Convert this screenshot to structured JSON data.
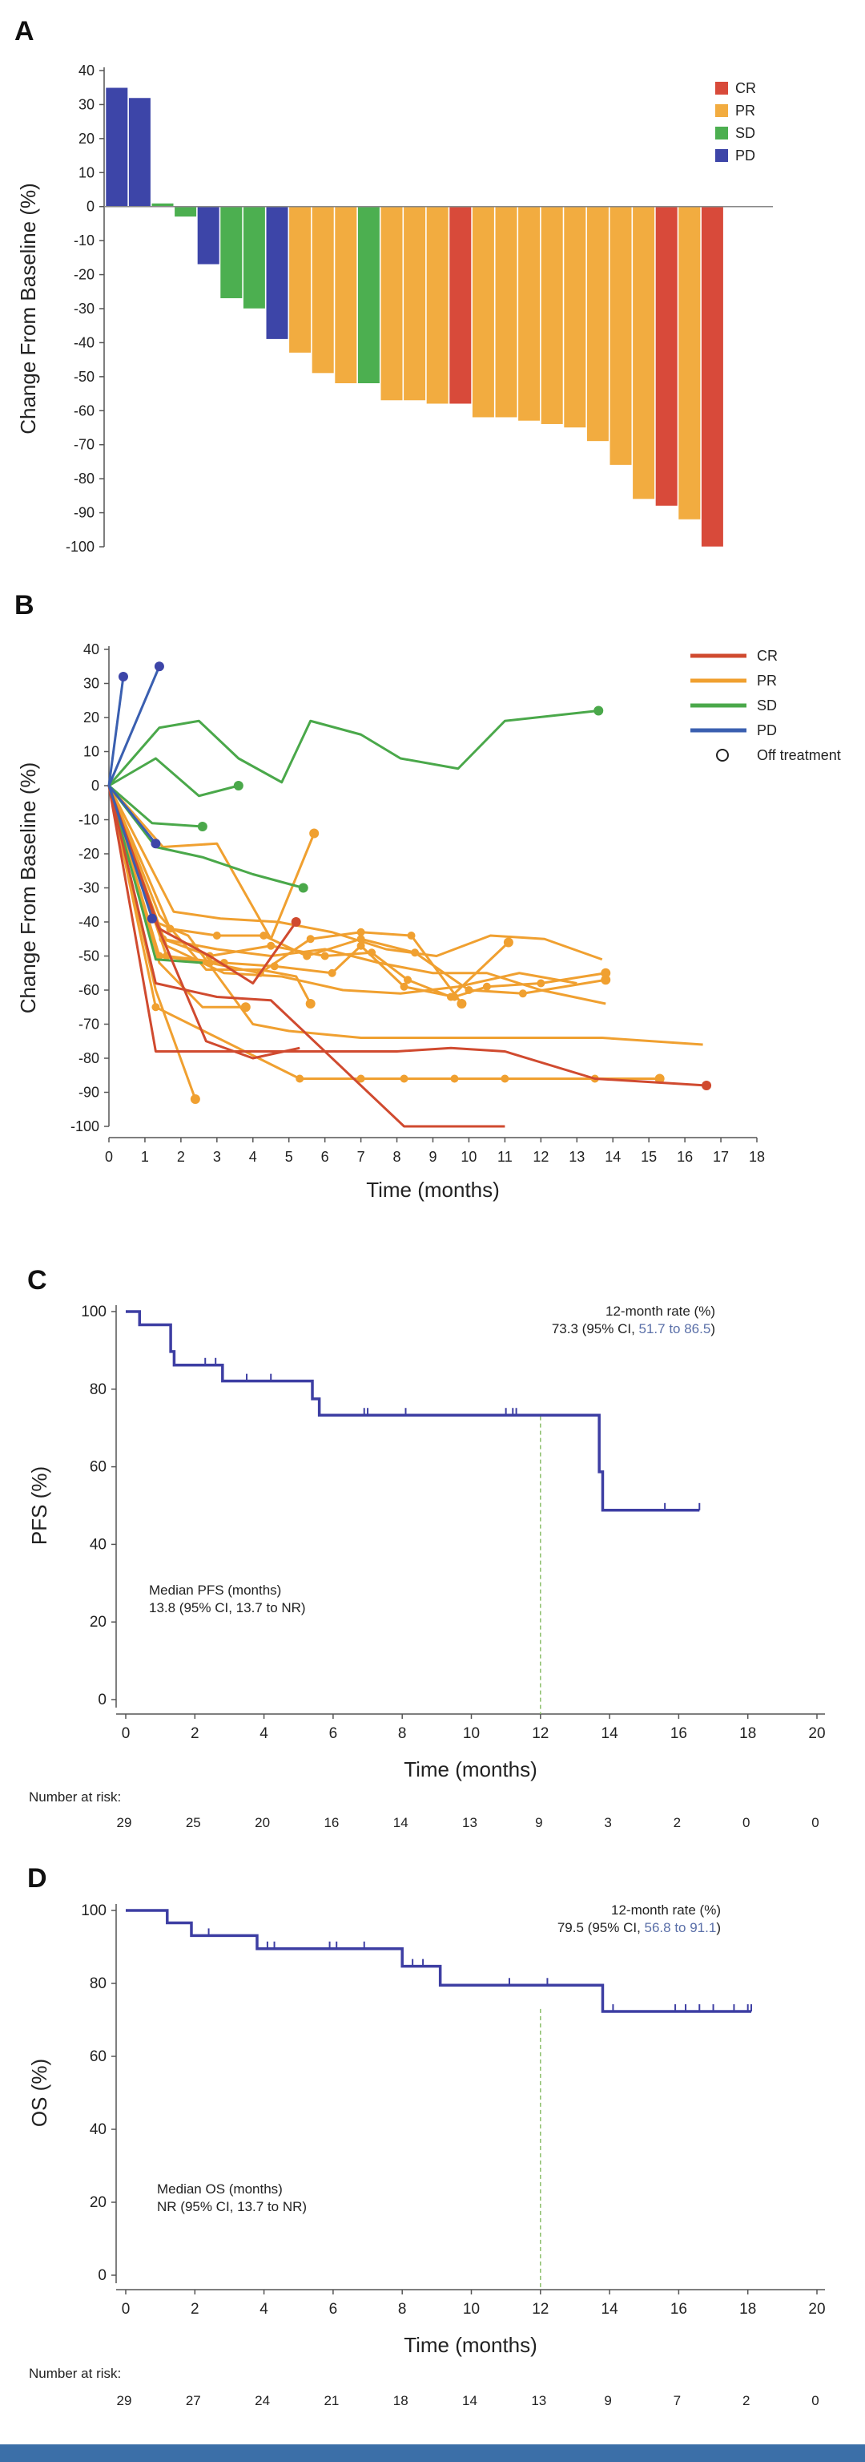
{
  "colors": {
    "CR": "#d84a3a",
    "PR": "#f2ac40",
    "SD": "#4caf50",
    "PD": "#3d45a8",
    "km": "#3d3ea3",
    "ref": "#8cbf6a",
    "lineCR": "#d04a2f",
    "linePR": "#f0a030",
    "lineSD": "#4aa84a",
    "linePD": "#3a5fb0"
  },
  "chart_data": [
    {
      "panel": "A",
      "type": "bar",
      "ylabel": "Change From Baseline (%)",
      "ylim": [
        -100,
        40
      ],
      "yticks": [
        40,
        30,
        20,
        10,
        0,
        -10,
        -20,
        -30,
        -40,
        -50,
        -60,
        -70,
        -80,
        -90,
        -100
      ],
      "legend": [
        "CR",
        "PR",
        "SD",
        "PD"
      ],
      "values": [
        35,
        32,
        1,
        -3,
        -17,
        -27,
        -30,
        -39,
        -43,
        -49,
        -52,
        -52,
        -57,
        -57,
        -58,
        -58,
        -62,
        -62,
        -63,
        -64,
        -65,
        -69,
        -76,
        -86,
        -88,
        -92,
        -100
      ],
      "response": [
        "PD",
        "PD",
        "SD",
        "SD",
        "PD",
        "SD",
        "SD",
        "PD",
        "PR",
        "PR",
        "PR",
        "SD",
        "PR",
        "PR",
        "PR",
        "CR",
        "PR",
        "PR",
        "PR",
        "PR",
        "PR",
        "PR",
        "PR",
        "PR",
        "CR",
        "PR",
        "CR"
      ]
    },
    {
      "panel": "B",
      "type": "line",
      "ylabel": "Change From Baseline (%)",
      "xlabel": "Time (months)",
      "xlim": [
        0,
        18
      ],
      "ylim": [
        -100,
        40
      ],
      "xticks": [
        0,
        1,
        2,
        3,
        4,
        5,
        6,
        7,
        8,
        9,
        10,
        11,
        12,
        13,
        14,
        15,
        16,
        17,
        18
      ],
      "yticks": [
        40,
        30,
        20,
        10,
        0,
        -10,
        -20,
        -30,
        -40,
        -50,
        -60,
        -70,
        -80,
        -90,
        -100
      ],
      "legend": [
        "CR",
        "PR",
        "SD",
        "PD",
        "Off treatment"
      ],
      "series": [
        {
          "response": "CR",
          "x": [
            0,
            1.3,
            4.2,
            6,
            8,
            9.5,
            11,
            13.5,
            16.6
          ],
          "y": [
            0,
            -78,
            -78,
            -78,
            -78,
            -77,
            -78,
            -86,
            -88
          ],
          "end_marker": true
        },
        {
          "response": "CR",
          "x": [
            0,
            1.3,
            3,
            4.5,
            8.2,
            11
          ],
          "y": [
            0,
            -58,
            -62,
            -63,
            -100,
            -100
          ],
          "end_marker": false
        },
        {
          "response": "CR",
          "x": [
            0,
            1.3,
            2.7,
            4,
            5.3
          ],
          "y": [
            0,
            -40,
            -75,
            -80,
            -77
          ],
          "end_marker": false
        },
        {
          "response": "CR",
          "x": [
            0,
            1.4,
            2.8,
            4,
            5.2
          ],
          "y": [
            0,
            -42,
            -50,
            -58,
            -40
          ],
          "end_marker": true
        },
        {
          "response": "PR",
          "x": [
            0,
            1.3,
            5.3,
            7,
            8.2,
            9.6,
            11,
            13.5,
            15.3
          ],
          "y": [
            0,
            -65,
            -86,
            -86,
            -86,
            -86,
            -86,
            -86,
            -86
          ],
          "end_marker": true
        },
        {
          "response": "PR",
          "x": [
            0,
            1.3,
            2.2,
            4,
            5,
            6,
            7,
            9,
            11,
            13.7,
            16.5
          ],
          "y": [
            0,
            -40,
            -44,
            -70,
            -72,
            -73,
            -74,
            -74,
            -74,
            -74,
            -76
          ],
          "end_marker": false
        },
        {
          "response": "PR",
          "x": [
            0,
            1.3,
            2.4
          ],
          "y": [
            0,
            -60,
            -92
          ],
          "end_marker": true
        },
        {
          "response": "PR",
          "x": [
            0,
            1.4,
            2.6,
            3.8
          ],
          "y": [
            0,
            -52,
            -65,
            -65
          ],
          "end_marker": true
        },
        {
          "response": "PR",
          "x": [
            0,
            1.4,
            2.7,
            4.2,
            5.2,
            5.6
          ],
          "y": [
            0,
            -38,
            -54,
            -54,
            -56,
            -64
          ],
          "end_marker": true
        },
        {
          "response": "PR",
          "x": [
            0,
            1.5,
            3,
            4.5,
            5.7
          ],
          "y": [
            0,
            -18,
            -17,
            -45,
            -14
          ],
          "end_marker": true
        },
        {
          "response": "PR",
          "x": [
            0,
            1.5,
            2.8,
            4.5,
            6,
            7.3,
            8.3,
            9.5,
            11.1
          ],
          "y": [
            0,
            -45,
            -50,
            -47,
            -50,
            -49,
            -57,
            -62,
            -46
          ],
          "end_marker": true
        },
        {
          "response": "PR",
          "x": [
            0,
            1.6,
            3.2,
            4.6,
            6.2,
            7,
            8.2,
            9.6,
            10.5,
            12,
            13.8
          ],
          "y": [
            0,
            -50,
            -52,
            -53,
            -55,
            -47,
            -59,
            -62,
            -59,
            -58,
            -55
          ],
          "end_marker": true
        },
        {
          "response": "PR",
          "x": [
            0,
            1.7,
            3,
            4.3,
            5.5,
            7,
            8.5,
            10,
            11.5,
            13.8
          ],
          "y": [
            0,
            -42,
            -44,
            -44,
            -50,
            -45,
            -49,
            -60,
            -61,
            -57
          ],
          "end_marker": true
        },
        {
          "response": "PR",
          "x": [
            0,
            1.8,
            3.1,
            4.7,
            6.2,
            7.7,
            9.1,
            10.6,
            12.1,
            13.7
          ],
          "y": [
            0,
            -37,
            -39,
            -40,
            -43,
            -48,
            -50,
            -44,
            -45,
            -51
          ],
          "end_marker": false
        },
        {
          "response": "PR",
          "x": [
            0,
            1.6,
            3.2,
            4.8,
            6.5,
            8.1,
            9.7,
            11.4,
            13
          ],
          "y": [
            0,
            -47,
            -55,
            -56,
            -60,
            -61,
            -59,
            -55,
            -58
          ],
          "end_marker": false
        },
        {
          "response": "PR",
          "x": [
            0,
            1.5,
            3,
            4.5,
            6,
            7.5,
            9,
            10.5,
            12,
            13.8
          ],
          "y": [
            0,
            -45,
            -48,
            -50,
            -48,
            -52,
            -55,
            -55,
            -60,
            -64
          ],
          "end_marker": false
        },
        {
          "response": "PR",
          "x": [
            0,
            1.4,
            2.8,
            4.2,
            5.6,
            7,
            8.4,
            9.8
          ],
          "y": [
            0,
            -50,
            -52,
            -55,
            -45,
            -43,
            -44,
            -64
          ],
          "end_marker": true
        },
        {
          "response": "SD",
          "x": [
            0,
            1.4,
            2.5,
            3.6,
            4.8,
            5.6,
            7,
            8.1,
            9.7,
            11,
            13.6
          ],
          "y": [
            0,
            17,
            19,
            8,
            1,
            19,
            15,
            8,
            5,
            19,
            22
          ],
          "end_marker": true
        },
        {
          "response": "SD",
          "x": [
            0,
            1.3,
            2.5,
            3.6
          ],
          "y": [
            0,
            8,
            -3,
            0
          ],
          "end_marker": true
        },
        {
          "response": "SD",
          "x": [
            0,
            1.2,
            2.6
          ],
          "y": [
            0,
            -11,
            -12
          ],
          "end_marker": true
        },
        {
          "response": "SD",
          "x": [
            0,
            1.3,
            2.6,
            4,
            5.4
          ],
          "y": [
            0,
            -18,
            -21,
            -26,
            -30
          ],
          "end_marker": true
        },
        {
          "response": "SD",
          "x": [
            0,
            1.3,
            2.6
          ],
          "y": [
            0,
            -51,
            -52
          ],
          "end_marker": false
        },
        {
          "response": "PD",
          "x": [
            0,
            0.4
          ],
          "y": [
            0,
            32
          ],
          "end_marker": true
        },
        {
          "response": "PD",
          "x": [
            0,
            1.4
          ],
          "y": [
            0,
            35
          ],
          "end_marker": true
        },
        {
          "response": "PD",
          "x": [
            0,
            1.3
          ],
          "y": [
            0,
            -17
          ],
          "end_marker": true
        },
        {
          "response": "PD",
          "x": [
            0,
            1.2
          ],
          "y": [
            0,
            -39
          ],
          "end_marker": true
        }
      ]
    },
    {
      "panel": "C",
      "type": "line",
      "ylabel": "PFS (%)",
      "xlabel": "Time (months)",
      "xlim": [
        0,
        20
      ],
      "ylim": [
        0,
        100
      ],
      "xticks": [
        0,
        2,
        4,
        6,
        8,
        10,
        12,
        14,
        16,
        18,
        20
      ],
      "yticks": [
        100,
        80,
        60,
        40,
        20,
        0
      ],
      "step_x": [
        0,
        0.4,
        0.4,
        1.3,
        1.3,
        1.4,
        1.4,
        2.8,
        2.8,
        5.4,
        5.4,
        5.6,
        5.6,
        13.7,
        13.7,
        13.8,
        13.8,
        16.6
      ],
      "step_y": [
        100,
        100,
        96.6,
        96.6,
        89.7,
        89.7,
        86.2,
        86.2,
        82.1,
        82.1,
        77.5,
        77.5,
        73.3,
        73.3,
        58.7,
        58.7,
        48.8,
        48.8
      ],
      "censor_x": [
        2.3,
        2.6,
        3.5,
        4.2,
        6.9,
        7.0,
        8.1,
        11.0,
        11.2,
        11.3,
        15.6,
        16.6
      ],
      "reference_x": 12,
      "annotation_title": "12-month rate (%)",
      "annotation_value": "73.3 (95% CI, ",
      "annotation_ci": "51.7 to 86.5",
      "annotation_close": ")",
      "median_title": "Median PFS (months)",
      "median_value": "13.8 (95% CI, 13.7 to NR)",
      "risk_title": "Number at risk:",
      "risk": [
        29,
        25,
        20,
        16,
        14,
        13,
        9,
        3,
        2,
        0,
        0
      ]
    },
    {
      "panel": "D",
      "type": "line",
      "ylabel": "OS (%)",
      "xlabel": "Time (months)",
      "xlim": [
        0,
        20
      ],
      "ylim": [
        0,
        100
      ],
      "xticks": [
        0,
        2,
        4,
        6,
        8,
        10,
        12,
        14,
        16,
        18,
        20
      ],
      "yticks": [
        100,
        80,
        60,
        40,
        20,
        0
      ],
      "step_x": [
        0,
        1.2,
        1.2,
        1.9,
        1.9,
        3.8,
        3.8,
        8.0,
        8.0,
        9.1,
        9.1,
        13.8,
        13.8,
        18.1
      ],
      "step_y": [
        100,
        100,
        96.6,
        96.6,
        93.1,
        93.1,
        89.5,
        89.5,
        84.7,
        84.7,
        79.5,
        79.5,
        72.3,
        72.3
      ],
      "censor_x": [
        2.4,
        4.1,
        4.3,
        5.9,
        6.1,
        6.9,
        8.3,
        8.6,
        11.1,
        12.2,
        14.1,
        15.9,
        16.2,
        16.6,
        17.0,
        17.6,
        18.0,
        18.1
      ],
      "reference_x": 12,
      "annotation_title": "12-month rate (%)",
      "annotation_value": "79.5 (95% CI, ",
      "annotation_ci": "56.8 to 91.1",
      "annotation_close": ")",
      "median_title": "Median OS (months)",
      "median_value": "NR (95% CI, 13.7 to NR)",
      "risk_title": "Number at risk:",
      "risk": [
        29,
        27,
        24,
        21,
        18,
        14,
        13,
        9,
        7,
        2,
        0
      ]
    }
  ]
}
